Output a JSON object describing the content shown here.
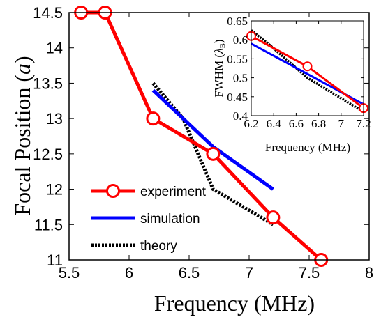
{
  "chart_data": [
    {
      "type": "line",
      "xlabel": "Frequency (MHz)",
      "ylabel_main": "Focal Position (",
      "ylabel_italic": "a",
      "ylabel_close": ")",
      "xlim": [
        5.5,
        8.0
      ],
      "ylim": [
        11.0,
        14.5
      ],
      "xticks": [
        "5.5",
        "6",
        "6.5",
        "7",
        "7.5",
        "8"
      ],
      "yticks": [
        "11",
        "11.5",
        "12",
        "12.5",
        "13",
        "13.5",
        "14",
        "14.5"
      ],
      "legend": "lower-left",
      "grid": false,
      "series": [
        {
          "name": "experiment",
          "color": "#ff0000",
          "style": "solid-circles",
          "x": [
            5.6,
            5.8,
            6.2,
            6.7,
            7.2,
            7.6
          ],
          "y": [
            14.5,
            14.5,
            13.0,
            12.5,
            11.6,
            11.0
          ]
        },
        {
          "name": "simulation",
          "color": "#0000ff",
          "style": "solid",
          "x": [
            6.2,
            6.7,
            7.2
          ],
          "y": [
            13.4,
            12.6,
            12.0
          ]
        },
        {
          "name": "theory",
          "color": "#000000",
          "style": "dotted",
          "x": [
            6.2,
            6.45,
            6.7,
            7.2
          ],
          "y": [
            13.5,
            13.0,
            12.0,
            11.5
          ]
        }
      ]
    },
    {
      "type": "line",
      "xlabel": "Frequency (MHz)",
      "ylabel_main": "FWHM (",
      "ylabel_italic": "λ",
      "ylabel_sub": "B",
      "ylabel_close": ")",
      "xlim": [
        6.2,
        7.2
      ],
      "ylim": [
        0.4,
        0.65
      ],
      "xticks": [
        "6.2",
        "6.4",
        "6.6",
        "6.8",
        "7",
        "7.2"
      ],
      "yticks": [
        "0.4",
        "0.45",
        "0.5",
        "0.55",
        "0.6",
        "0.65"
      ],
      "grid": false,
      "series": [
        {
          "color": "#ff0000",
          "style": "solid-circles",
          "x": [
            6.2,
            6.7,
            7.2
          ],
          "y": [
            0.61,
            0.53,
            0.42
          ]
        },
        {
          "color": "#0000ff",
          "style": "solid",
          "x": [
            6.2,
            7.2
          ],
          "y": [
            0.59,
            0.43
          ]
        },
        {
          "color": "#000000",
          "style": "dotted",
          "x": [
            6.2,
            6.35,
            6.7,
            7.2
          ],
          "y": [
            0.625,
            0.59,
            0.5,
            0.41
          ]
        }
      ]
    }
  ]
}
